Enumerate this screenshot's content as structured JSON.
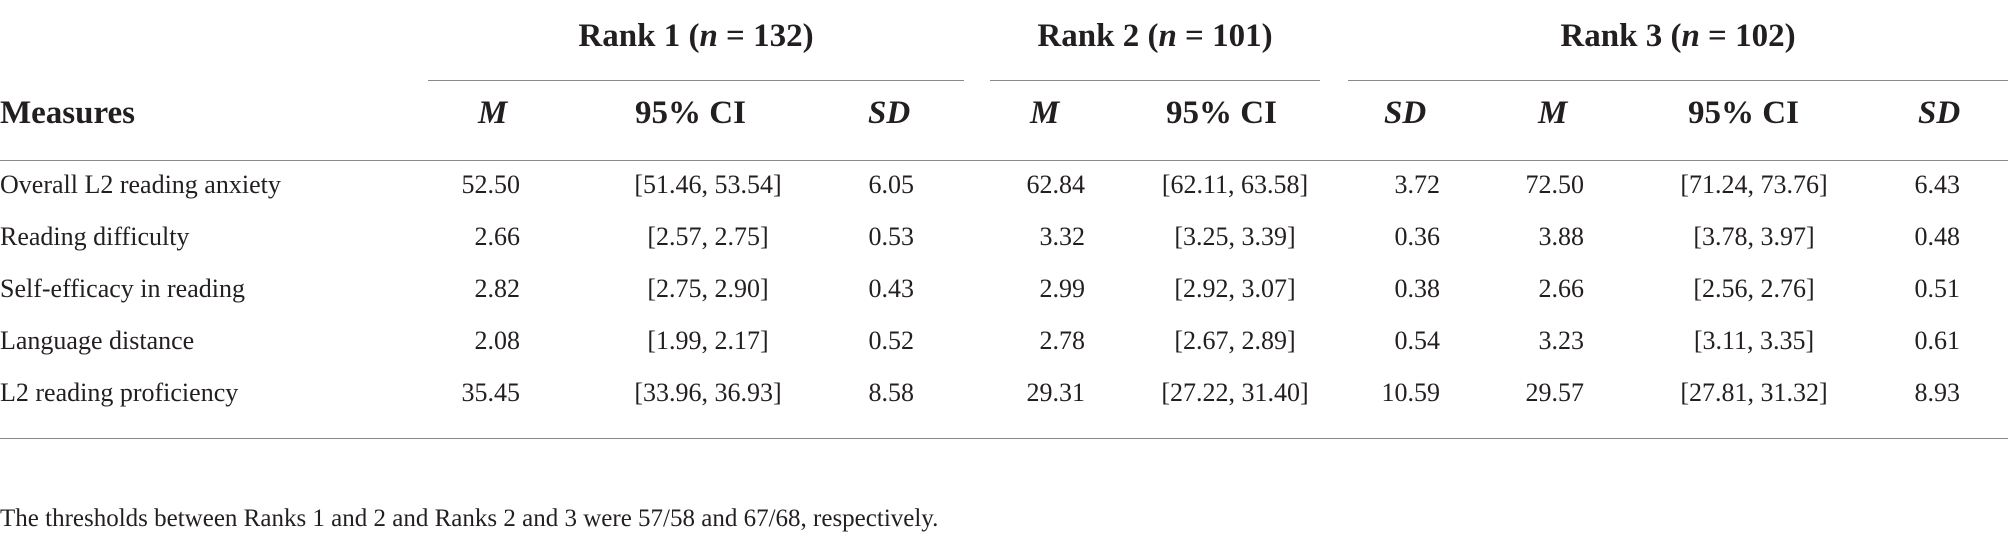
{
  "table": {
    "groups": [
      {
        "label": "Rank 1 (",
        "n": "n",
        "eq": " = 132)"
      },
      {
        "label": "Rank 2 (",
        "n": "n",
        "eq": " = 101)"
      },
      {
        "label": "Rank 3 (",
        "n": "n",
        "eq": " = 102)"
      }
    ],
    "columns": [
      "Measures",
      "M",
      "95% CI",
      "SD",
      "M",
      "95% CI",
      "SD",
      "M",
      "95% CI",
      "SD"
    ],
    "rows": [
      {
        "measure": "Overall L2 reading anxiety",
        "cells": [
          "52.50",
          "[51.46, 53.54]",
          "6.05",
          "62.84",
          "[62.11, 63.58]",
          "3.72",
          "72.50",
          "[71.24, 73.76]",
          "6.43"
        ]
      },
      {
        "measure": "Reading difficulty",
        "cells": [
          "2.66",
          "[2.57, 2.75]",
          "0.53",
          "3.32",
          "[3.25, 3.39]",
          "0.36",
          "3.88",
          "[3.78, 3.97]",
          "0.48"
        ]
      },
      {
        "measure": "Self-efficacy in reading",
        "cells": [
          "2.82",
          "[2.75, 2.90]",
          "0.43",
          "2.99",
          "[2.92, 3.07]",
          "0.38",
          "2.66",
          "[2.56, 2.76]",
          "0.51"
        ]
      },
      {
        "measure": "Language distance",
        "cells": [
          "2.08",
          "[1.99, 2.17]",
          "0.52",
          "2.78",
          "[2.67, 2.89]",
          "0.54",
          "3.23",
          "[3.11, 3.35]",
          "0.61"
        ]
      },
      {
        "measure": "L2 reading proficiency",
        "cells": [
          "35.45",
          "[33.96, 36.93]",
          "8.58",
          "29.31",
          "[27.22, 31.40]",
          "10.59",
          "29.57",
          "[27.81, 31.32]",
          "8.93"
        ]
      }
    ],
    "footnote": "The thresholds between Ranks 1 and 2 and Ranks 2 and 3 were 57/58 and 67/68, respectively."
  }
}
